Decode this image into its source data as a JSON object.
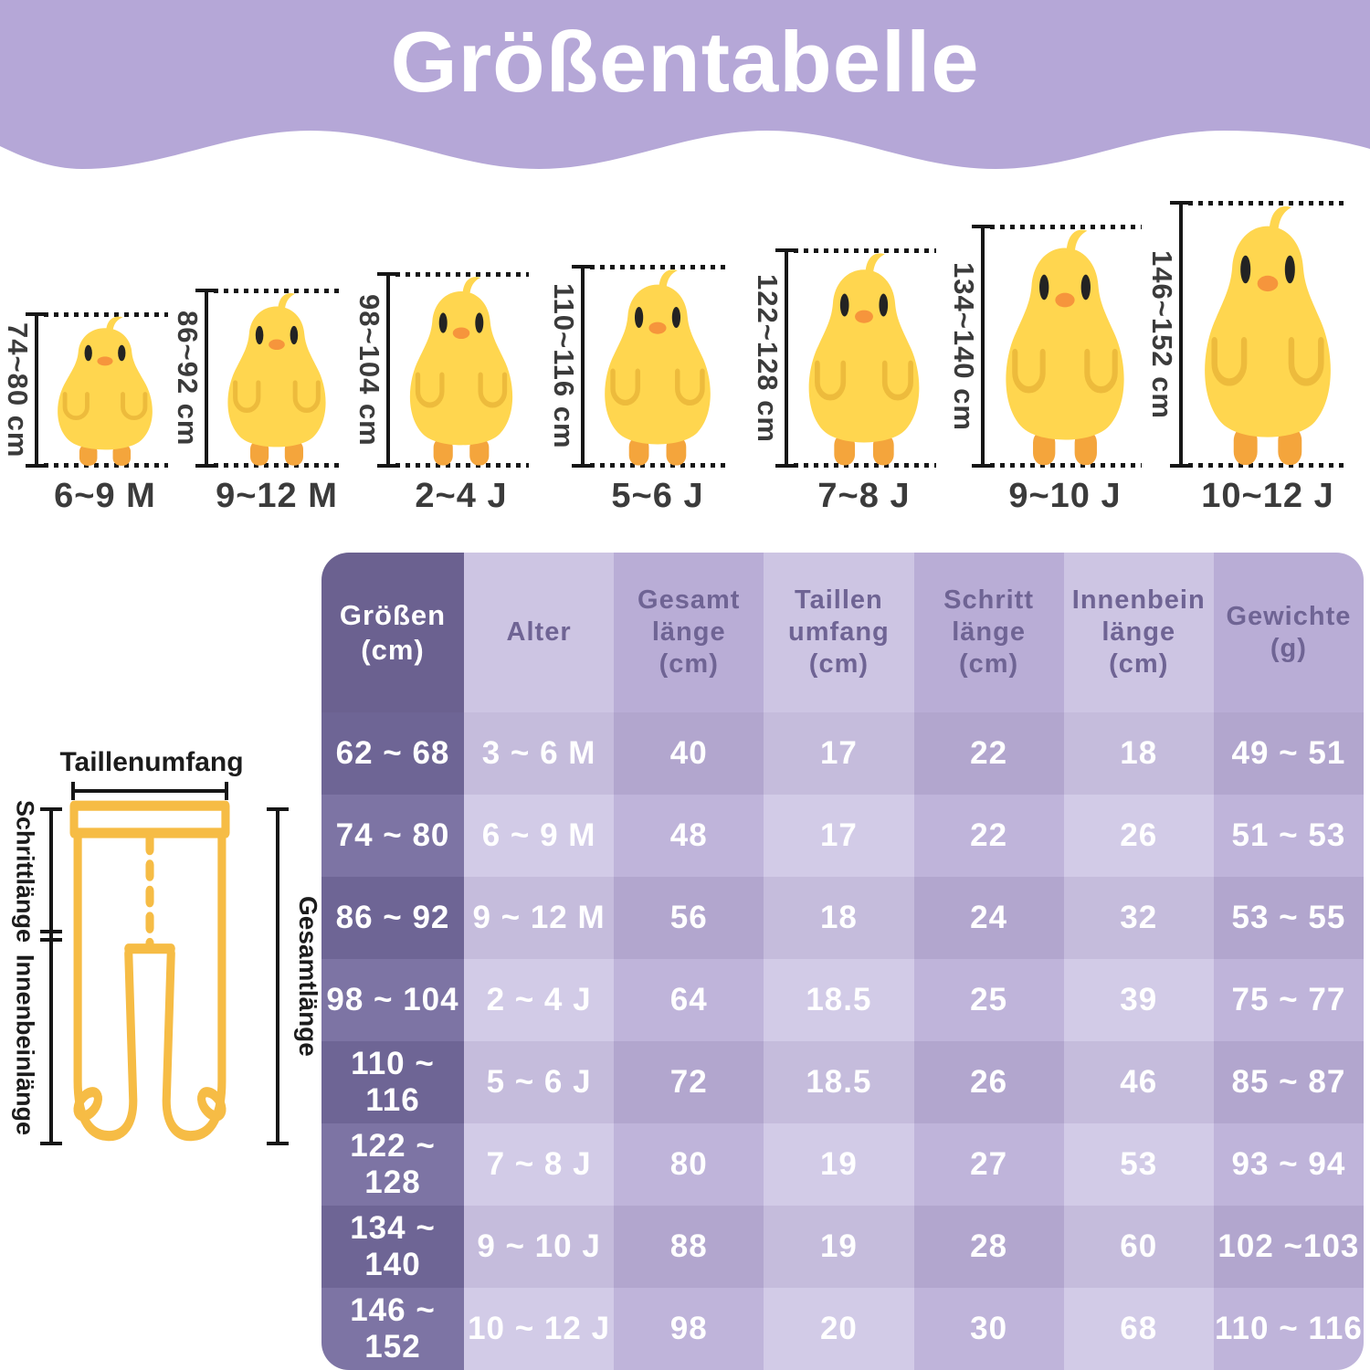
{
  "title": "Größentabelle",
  "chicks": [
    {
      "range": "74~80 cm",
      "age": "6~9 M"
    },
    {
      "range": "86~92 cm",
      "age": "9~12 M"
    },
    {
      "range": "98~104 cm",
      "age": "2~4 J"
    },
    {
      "range": "110~116 cm",
      "age": "5~6 J"
    },
    {
      "range": "122~128 cm",
      "age": "7~8 J"
    },
    {
      "range": "134~140 cm",
      "age": "9~10 J"
    },
    {
      "range": "146~152 cm",
      "age": "10~12 J"
    }
  ],
  "diagram": {
    "waist_label": "Taillenumfang",
    "crotch_label": "Schrittlänge",
    "inseam_label": "Innenbeinlänge",
    "total_label": "Gesamtlänge"
  },
  "table": {
    "headers": [
      "Größen\n(cm)",
      "Alter",
      "Gesamt\nlänge\n(cm)",
      "Taillen\numfang\n(cm)",
      "Schritt\nlänge\n(cm)",
      "Innenbein\nlänge\n(cm)",
      "Gewichte\n(g)"
    ],
    "rows": [
      [
        "62 ~ 68",
        "3 ~ 6 M",
        "40",
        "17",
        "22",
        "18",
        "49 ~ 51"
      ],
      [
        "74 ~ 80",
        "6 ~ 9 M",
        "48",
        "17",
        "22",
        "26",
        "51 ~ 53"
      ],
      [
        "86 ~ 92",
        "9 ~ 12 M",
        "56",
        "18",
        "24",
        "32",
        "53 ~ 55"
      ],
      [
        "98 ~ 104",
        "2 ~ 4 J",
        "64",
        "18.5",
        "25",
        "39",
        "75 ~ 77"
      ],
      [
        "110 ~ 116",
        "5 ~ 6 J",
        "72",
        "18.5",
        "26",
        "46",
        "85 ~ 87"
      ],
      [
        "122 ~ 128",
        "7 ~ 8 J",
        "80",
        "19",
        "27",
        "53",
        "93 ~ 94"
      ],
      [
        "134 ~ 140",
        "9 ~ 10 J",
        "88",
        "19",
        "28",
        "60",
        "102 ~103"
      ],
      [
        "146 ~ 152",
        "10 ~ 12 J",
        "98",
        "20",
        "30",
        "68",
        "110 ~ 116"
      ]
    ]
  },
  "colors": {
    "banner": "#B5A7D7",
    "title_text": "#FFFFFF",
    "measure": "#161616",
    "label_text": "#3B3B3B",
    "header_text": "#6F6494",
    "cell_text": "#FFFFFF",
    "first_header": "#6B6190",
    "first_odd": "#6E6595",
    "first_even": "#7D74A4",
    "light_header": "#CDC5E3",
    "light_odd": "#C5BCDC",
    "light_even": "#D2CBE7",
    "dark_header": "#B9ADD6",
    "dark_odd": "#B2A6CE",
    "dark_even": "#BFB4DA",
    "chick_body": "#FFD64F",
    "chick_wing": "#EDBB3C",
    "chick_feet": "#F4A53C",
    "chick_beak": "#F6953C",
    "chick_eye": "#232323",
    "tights": "#F6BC45"
  }
}
